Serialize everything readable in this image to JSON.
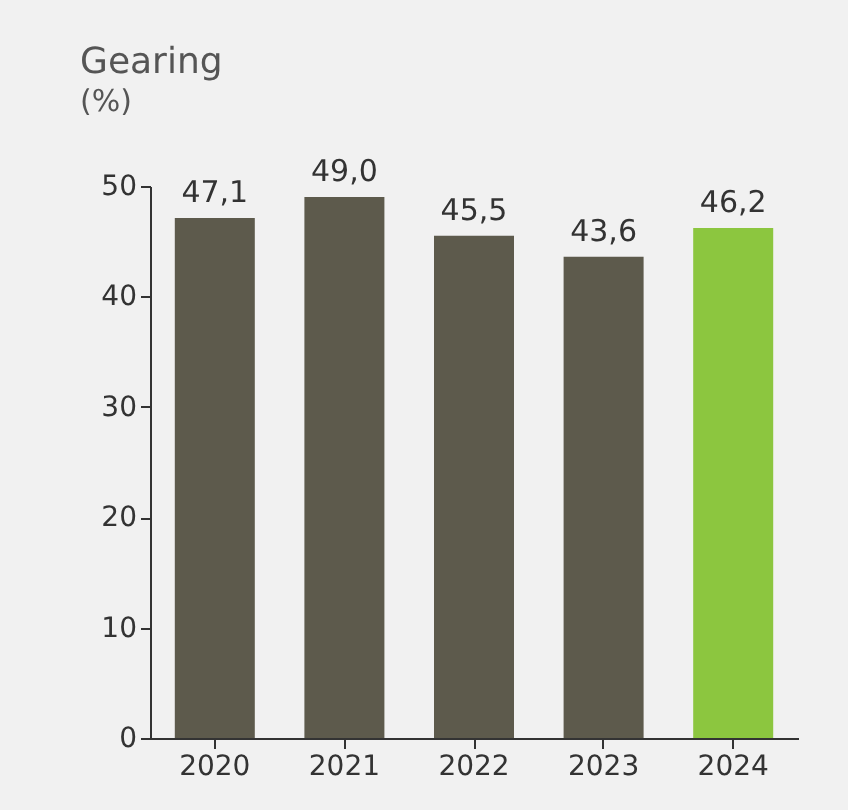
{
  "chart_data": {
    "type": "bar",
    "title": "Gearing",
    "subtitle": "(%)",
    "categories": [
      "2020",
      "2021",
      "2022",
      "2023",
      "2024"
    ],
    "values": [
      47.1,
      49.0,
      45.5,
      43.6,
      46.2
    ],
    "colors": [
      "#5d5a4c",
      "#5d5a4c",
      "#5d5a4c",
      "#5d5a4c",
      "#8cc63f"
    ],
    "value_labels": [
      "47,1",
      "49,0",
      "45,5",
      "43,6",
      "46,2"
    ],
    "ylim": [
      0,
      50
    ],
    "yticks": [
      0,
      10,
      20,
      30,
      40,
      50
    ],
    "grid": false
  }
}
